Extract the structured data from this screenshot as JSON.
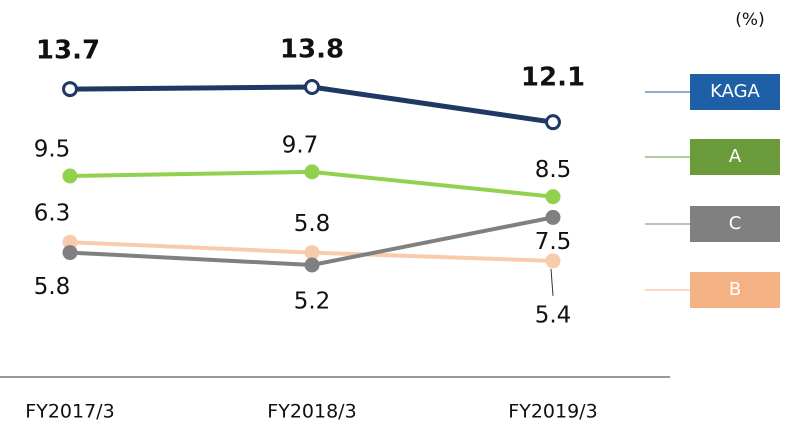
{
  "chart_data": {
    "type": "line",
    "unit": "(%)",
    "categories": [
      "FY2017/3",
      "FY2018/3",
      "FY2019/3"
    ],
    "series": [
      {
        "name": "KAGA",
        "color": "#1f3864",
        "legend_color": "#1e5fa8",
        "values": [
          13.7,
          13.8,
          12.1
        ]
      },
      {
        "name": "A",
        "color": "#92d050",
        "legend_color": "#6a9a3a",
        "values": [
          9.5,
          9.7,
          8.5
        ]
      },
      {
        "name": "C",
        "color": "#808080",
        "legend_color": "#808080",
        "values": [
          5.8,
          5.2,
          7.5
        ]
      },
      {
        "name": "B",
        "color": "#f8cbad",
        "legend_color": "#f4b183",
        "values": [
          6.3,
          5.8,
          5.4
        ]
      }
    ]
  }
}
